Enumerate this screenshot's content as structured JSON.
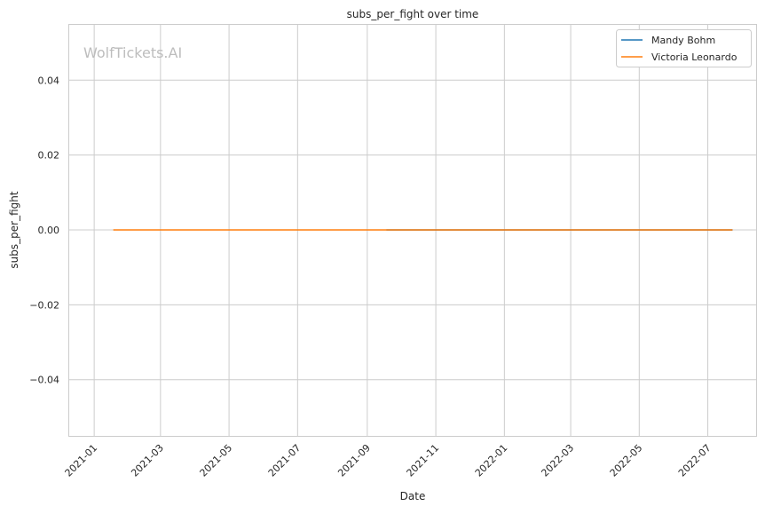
{
  "chart_data": {
    "type": "line",
    "title": "subs_per_fight over time",
    "xlabel": "Date",
    "ylabel": "subs_per_fight",
    "watermark": "WolfTickets.AI",
    "xlim": [
      "2020-12-09",
      "2022-08-13"
    ],
    "ylim": [
      -0.055,
      0.055
    ],
    "xticks": [
      "2021-01",
      "2021-03",
      "2021-05",
      "2021-07",
      "2021-09",
      "2021-11",
      "2022-01",
      "2022-03",
      "2022-05",
      "2022-07"
    ],
    "yticks": [
      -0.04,
      -0.02,
      0.0,
      0.02,
      0.04
    ],
    "ytick_labels": [
      "−0.04",
      "−0.02",
      "0.00",
      "0.02",
      "0.04"
    ],
    "grid": true,
    "legend": "top-right",
    "series": [
      {
        "name": "Mandy Bohm",
        "color": "#1f77b4",
        "x": [
          "2021-09-18",
          "2022-07-23"
        ],
        "y": [
          0.0,
          0.0
        ]
      },
      {
        "name": "Victoria Leonardo",
        "color": "#ff7f0e",
        "x": [
          "2021-01-18",
          "2022-07-23"
        ],
        "y": [
          0.0,
          0.0
        ]
      }
    ]
  }
}
